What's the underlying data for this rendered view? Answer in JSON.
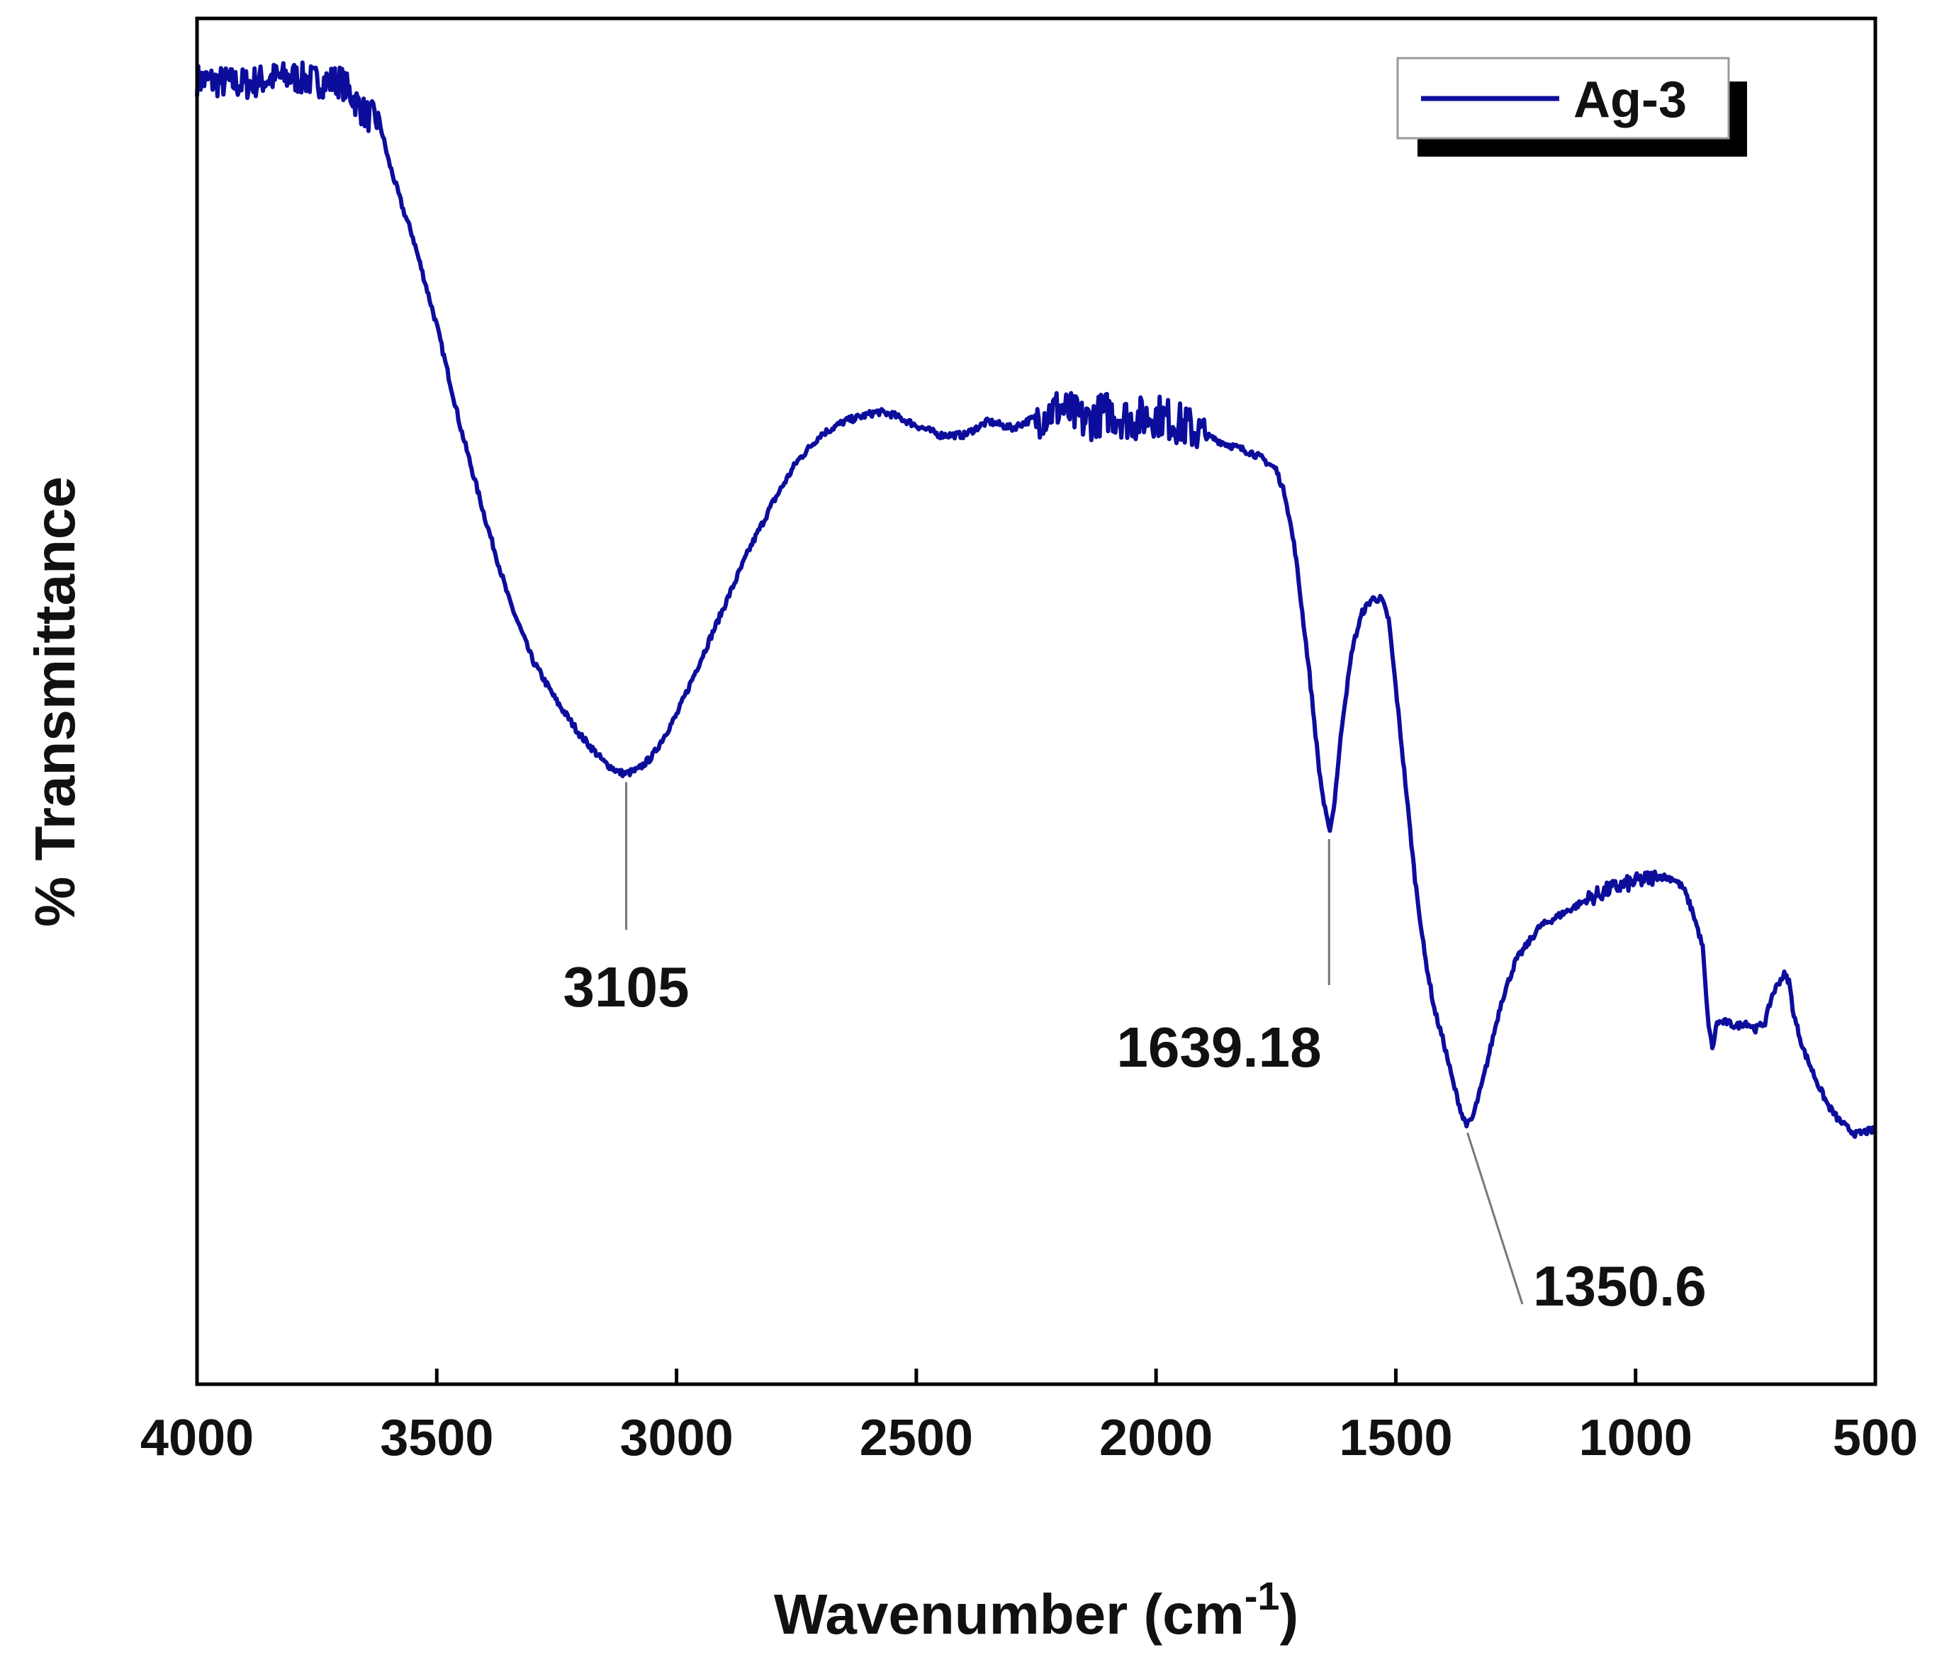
{
  "chart_data": {
    "type": "line",
    "xlabel": "Wavenumber (cm",
    "xlabel_sup": "-1",
    "xlabel_end": ")",
    "ylabel": "% Transmittance",
    "xlim": [
      4000,
      500
    ],
    "x_reversed": true,
    "ylim": [
      0,
      100
    ],
    "y_ticks_shown": false,
    "x_ticks": [
      4000,
      3500,
      3000,
      2500,
      2000,
      1500,
      1000,
      500
    ],
    "x_tick_labels": [
      "4000",
      "3500",
      "3000",
      "2500",
      "2000",
      "1500",
      "1000",
      "500"
    ],
    "grid": false,
    "legend": {
      "position": "top-right",
      "entries": [
        "Ag-3"
      ]
    },
    "series": [
      {
        "name": "Ag-3",
        "color": "#0d0d9c",
        "x": [
          4000,
          3900,
          3850,
          3800,
          3750,
          3700,
          3680,
          3650,
          3620,
          3600,
          3570,
          3550,
          3500,
          3450,
          3400,
          3350,
          3300,
          3250,
          3200,
          3150,
          3120,
          3105,
          3080,
          3050,
          3000,
          2950,
          2900,
          2850,
          2800,
          2750,
          2700,
          2650,
          2600,
          2580,
          2550,
          2500,
          2450,
          2400,
          2350,
          2300,
          2250,
          2200,
          2150,
          2100,
          2050,
          2000,
          1950,
          1900,
          1850,
          1800,
          1780,
          1750,
          1730,
          1710,
          1700,
          1680,
          1660,
          1650,
          1639,
          1630,
          1610,
          1590,
          1570,
          1550,
          1530,
          1515,
          1500,
          1480,
          1460,
          1440,
          1420,
          1400,
          1380,
          1360,
          1350,
          1340,
          1320,
          1300,
          1280,
          1250,
          1200,
          1150,
          1100,
          1050,
          1000,
          950,
          920,
          900,
          880,
          860,
          850,
          840,
          830,
          810,
          790,
          770,
          750,
          730,
          715,
          700,
          690,
          680,
          670,
          650,
          620,
          600,
          580,
          560,
          540,
          520,
          500
        ],
        "y": [
          95.5,
          95.2,
          95.6,
          95.7,
          95.4,
          95.4,
          94.5,
          93.0,
          92.5,
          89.5,
          86.0,
          84.0,
          77.5,
          70.0,
          63.5,
          57.5,
          53.0,
          50.0,
          47.5,
          45.5,
          44.8,
          44.7,
          45.0,
          46.0,
          49.0,
          53.0,
          57.0,
          61.0,
          64.5,
          67.5,
          69.5,
          70.5,
          71.0,
          71.2,
          71.0,
          70.2,
          69.5,
          69.5,
          70.5,
          70.0,
          70.8,
          71.5,
          70.5,
          71.2,
          70.6,
          71.0,
          70.3,
          69.5,
          68.8,
          68.2,
          67.8,
          67.0,
          65.0,
          61.0,
          58.0,
          52.0,
          45.0,
          42.5,
          40.5,
          42.0,
          49.0,
          54.0,
          56.5,
          57.5,
          57.5,
          56.0,
          51.0,
          44.0,
          37.0,
          31.5,
          27.5,
          25.0,
          22.0,
          19.5,
          19.0,
          19.5,
          22.0,
          25.0,
          28.0,
          31.0,
          33.5,
          34.5,
          35.5,
          36.3,
          36.8,
          37.2,
          37.0,
          36.3,
          34.5,
          32.0,
          27.0,
          24.5,
          26.5,
          26.5,
          26.2,
          26.5,
          26.0,
          26.5,
          28.5,
          29.5,
          30.0,
          29.5,
          27.0,
          24.5,
          22.0,
          20.5,
          19.5,
          18.8,
          18.3,
          18.5,
          18.6
        ]
      }
    ],
    "annotations": [
      {
        "x": 3105,
        "label": "3105"
      },
      {
        "x": 1639.18,
        "label": "1639.18"
      },
      {
        "x": 1350.6,
        "label": "1350.6"
      }
    ]
  }
}
